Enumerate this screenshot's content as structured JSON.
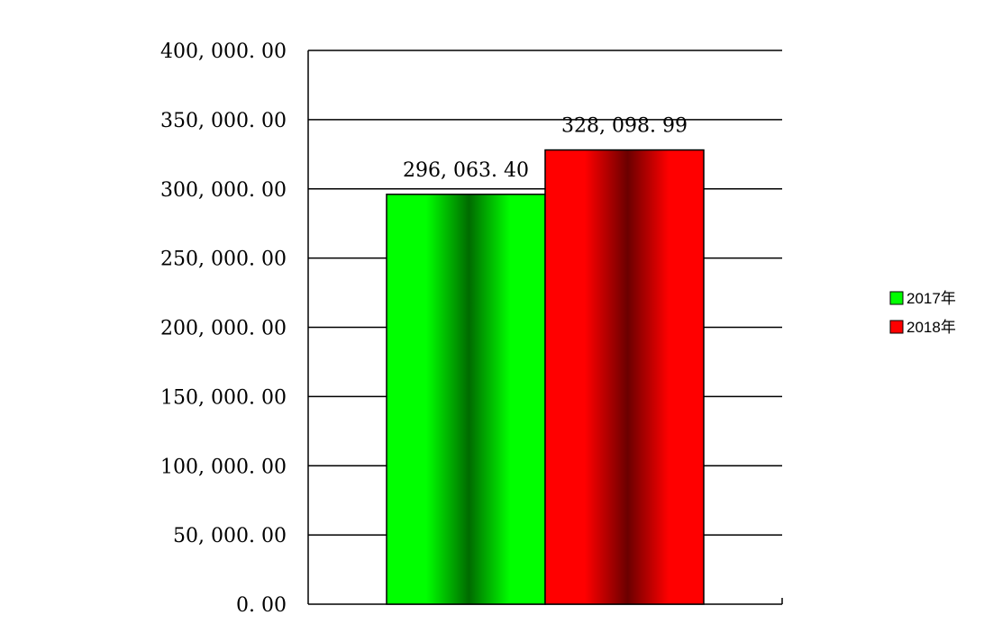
{
  "chart_data": {
    "type": "bar",
    "categories": [
      ""
    ],
    "series": [
      {
        "name": "2017年",
        "values": [
          296063.4
        ],
        "label": "296, 063. 40",
        "color": "#00ff00",
        "dark": "#006b00"
      },
      {
        "name": "2018年",
        "values": [
          328098.99
        ],
        "label": "328, 098. 99",
        "color": "#ff0000",
        "dark": "#6b0000"
      }
    ],
    "ylim": [
      0,
      400000
    ],
    "yticks": [
      0,
      50000,
      100000,
      150000,
      200000,
      250000,
      300000,
      350000,
      400000
    ],
    "ytick_labels": [
      "0. 00",
      "50, 000. 00",
      "100, 000. 00",
      "150, 000. 00",
      "200, 000. 00",
      "250, 000. 00",
      "300, 000. 00",
      "350, 000. 00",
      "400, 000. 00"
    ],
    "grid": true,
    "legend": "right"
  }
}
